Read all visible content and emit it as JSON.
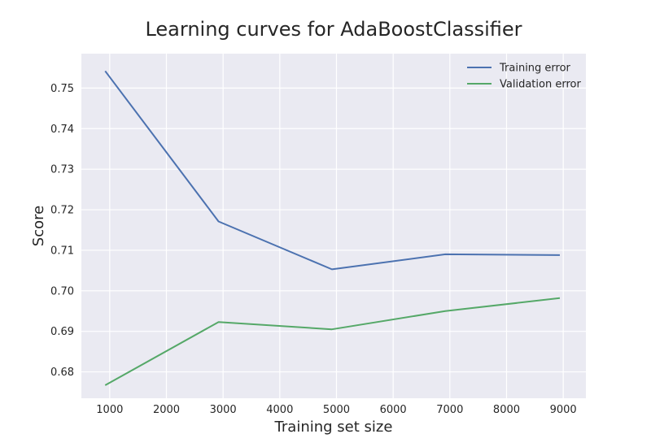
{
  "chart_data": {
    "type": "line",
    "title": "Learning curves for AdaBoostClassifier",
    "xlabel": "Training set size",
    "ylabel": "Score",
    "xlim": [
      500,
      9400
    ],
    "ylim": [
      0.6735,
      0.7585
    ],
    "xticks": [
      1000,
      2000,
      3000,
      4000,
      5000,
      6000,
      7000,
      8000,
      9000
    ],
    "yticks": [
      0.68,
      0.69,
      0.7,
      0.71,
      0.72,
      0.73,
      0.74,
      0.75
    ],
    "x": [
      920,
      2920,
      4920,
      6920,
      8940
    ],
    "series": [
      {
        "name": "Training error",
        "color": "#4c72b0",
        "values": [
          0.7542,
          0.7171,
          0.7053,
          0.709,
          0.7088
        ]
      },
      {
        "name": "Validation error",
        "color": "#55a868",
        "values": [
          0.6767,
          0.6923,
          0.6905,
          0.695,
          0.6982
        ]
      }
    ],
    "grid": true,
    "legend": "top-right",
    "background": "#eaeaf2"
  }
}
